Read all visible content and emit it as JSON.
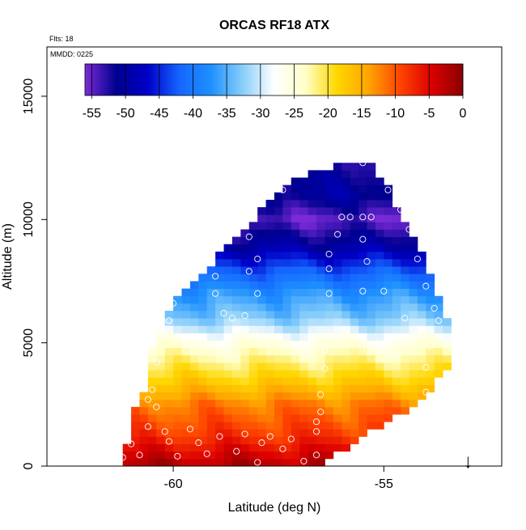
{
  "chart_data": {
    "type": "heatmap",
    "title": "ORCAS RF18 ATX",
    "notes": {
      "flights": "Flts: 18",
      "date": "MMDD: 0225"
    },
    "xlabel": "Latitude (deg N)",
    "ylabel": "Altitude (m)",
    "xlim": [
      -63,
      -52.2
    ],
    "ylim": [
      0,
      17000
    ],
    "x_ticks": [
      {
        "value": -60,
        "label": "-60"
      },
      {
        "value": -55,
        "label": "-55"
      }
    ],
    "y_ticks": [
      {
        "value": 0,
        "label": "0"
      },
      {
        "value": 5000,
        "label": "5000"
      },
      {
        "value": 10000,
        "label": "10000"
      },
      {
        "value": 15000,
        "label": "15000"
      }
    ],
    "colorbar": {
      "range": [
        -56,
        0
      ],
      "ticks": [
        {
          "value": -55,
          "label": "-55"
        },
        {
          "value": -50,
          "label": "-50"
        },
        {
          "value": -45,
          "label": "-45"
        },
        {
          "value": -40,
          "label": "-40"
        },
        {
          "value": -35,
          "label": "-35"
        },
        {
          "value": -30,
          "label": "-30"
        },
        {
          "value": -25,
          "label": "-25"
        },
        {
          "value": -20,
          "label": "-20"
        },
        {
          "value": -15,
          "label": "-15"
        },
        {
          "value": -10,
          "label": "-10"
        },
        {
          "value": -5,
          "label": "-5"
        },
        {
          "value": 0,
          "label": "0"
        }
      ],
      "colors": [
        "#7b2bd6",
        "#00008f",
        "#0000c8",
        "#1565ff",
        "#1e90ff",
        "#87cefa",
        "#ffffff",
        "#ffffc8",
        "#ffd700",
        "#ffa500",
        "#ff4500",
        "#dc0000",
        "#8b0000"
      ]
    },
    "field": {
      "description": "Gridded air temperature (deg C) vs latitude and altitude",
      "cell_lat": 0.2,
      "cell_alt": 300,
      "envelope": [
        {
          "alt": 0,
          "min_lat": -61.3,
          "max_lat": -56.5
        },
        {
          "alt": 600,
          "min_lat": -61.3,
          "max_lat": -56.0
        },
        {
          "alt": 1200,
          "min_lat": -61.0,
          "max_lat": -55.5
        },
        {
          "alt": 2100,
          "min_lat": -61.0,
          "max_lat": -54.6
        },
        {
          "alt": 3000,
          "min_lat": -60.7,
          "max_lat": -53.9
        },
        {
          "alt": 3900,
          "min_lat": -60.5,
          "max_lat": -53.5
        },
        {
          "alt": 4800,
          "min_lat": -60.5,
          "max_lat": -53.3
        },
        {
          "alt": 5700,
          "min_lat": -60.3,
          "max_lat": -53.4
        },
        {
          "alt": 6600,
          "min_lat": -60.0,
          "max_lat": -53.6
        },
        {
          "alt": 7500,
          "min_lat": -59.5,
          "max_lat": -53.8
        },
        {
          "alt": 8400,
          "min_lat": -59.0,
          "max_lat": -54.0
        },
        {
          "alt": 9300,
          "min_lat": -58.5,
          "max_lat": -54.3
        },
        {
          "alt": 10200,
          "min_lat": -58.0,
          "max_lat": -54.6
        },
        {
          "alt": 11400,
          "min_lat": -57.4,
          "max_lat": -54.9
        },
        {
          "alt": 12300,
          "min_lat": -56.0,
          "max_lat": -55.3
        }
      ],
      "temperature_profile": [
        {
          "alt": 0,
          "temp": -2
        },
        {
          "alt": 1200,
          "temp": -8
        },
        {
          "alt": 2500,
          "temp": -12
        },
        {
          "alt": 3500,
          "temp": -18
        },
        {
          "alt": 4500,
          "temp": -23
        },
        {
          "alt": 5200,
          "temp": -27
        },
        {
          "alt": 6000,
          "temp": -33
        },
        {
          "alt": 7000,
          "temp": -37
        },
        {
          "alt": 8000,
          "temp": -43
        },
        {
          "alt": 9000,
          "temp": -50
        },
        {
          "alt": 10000,
          "temp": -55
        },
        {
          "alt": 11000,
          "temp": -50
        },
        {
          "alt": 12300,
          "temp": -52
        }
      ]
    },
    "observations": [
      {
        "lat": -61.2,
        "alt": 350
      },
      {
        "lat": -61.0,
        "alt": 900
      },
      {
        "lat": -60.8,
        "alt": 450
      },
      {
        "lat": -60.6,
        "alt": 1600
      },
      {
        "lat": -60.4,
        "alt": 2400
      },
      {
        "lat": -60.2,
        "alt": 1400
      },
      {
        "lat": -60.1,
        "alt": 1000
      },
      {
        "lat": -59.9,
        "alt": 400
      },
      {
        "lat": -59.6,
        "alt": 1500
      },
      {
        "lat": -59.4,
        "alt": 950
      },
      {
        "lat": -59.2,
        "alt": 500
      },
      {
        "lat": -58.9,
        "alt": 1200
      },
      {
        "lat": -58.5,
        "alt": 600
      },
      {
        "lat": -58.3,
        "alt": 1300
      },
      {
        "lat": -58.0,
        "alt": 150
      },
      {
        "lat": -57.9,
        "alt": 950
      },
      {
        "lat": -57.7,
        "alt": 1200
      },
      {
        "lat": -57.4,
        "alt": 700
      },
      {
        "lat": -57.2,
        "alt": 1100
      },
      {
        "lat": -56.9,
        "alt": 200
      },
      {
        "lat": -56.6,
        "alt": 450
      },
      {
        "lat": -56.6,
        "alt": 1400
      },
      {
        "lat": -56.6,
        "alt": 1800
      },
      {
        "lat": -56.5,
        "alt": 2200
      },
      {
        "lat": -56.5,
        "alt": 2900
      },
      {
        "lat": -56.4,
        "alt": 3950
      },
      {
        "lat": -56.4,
        "alt": 4700
      },
      {
        "lat": -56.3,
        "alt": 5400
      },
      {
        "lat": -56.0,
        "alt": 5200
      },
      {
        "lat": -55.4,
        "alt": 4700
      },
      {
        "lat": -54.7,
        "alt": 4500
      },
      {
        "lat": -54.0,
        "alt": 4000
      },
      {
        "lat": -54.0,
        "alt": 3000
      },
      {
        "lat": -53.9,
        "alt": 4900
      },
      {
        "lat": -53.7,
        "alt": 5900
      },
      {
        "lat": -54.5,
        "alt": 6000
      },
      {
        "lat": -55.0,
        "alt": 7100
      },
      {
        "lat": -55.5,
        "alt": 7100
      },
      {
        "lat": -56.3,
        "alt": 7000
      },
      {
        "lat": -56.3,
        "alt": 8000
      },
      {
        "lat": -56.3,
        "alt": 8600
      },
      {
        "lat": -55.4,
        "alt": 8300
      },
      {
        "lat": -54.2,
        "alt": 8400
      },
      {
        "lat": -54.0,
        "alt": 7300
      },
      {
        "lat": -53.8,
        "alt": 6400
      },
      {
        "lat": -56.1,
        "alt": 9400
      },
      {
        "lat": -55.5,
        "alt": 9200
      },
      {
        "lat": -56.0,
        "alt": 10100
      },
      {
        "lat": -55.8,
        "alt": 10100
      },
      {
        "lat": -55.5,
        "alt": 10100
      },
      {
        "lat": -55.3,
        "alt": 10100
      },
      {
        "lat": -54.6,
        "alt": 10400
      },
      {
        "lat": -54.4,
        "alt": 9600
      },
      {
        "lat": -54.9,
        "alt": 11200
      },
      {
        "lat": -55.1,
        "alt": 11900
      },
      {
        "lat": -55.5,
        "alt": 12300
      },
      {
        "lat": -56.4,
        "alt": 12300
      },
      {
        "lat": -56.9,
        "alt": 12300
      },
      {
        "lat": -57.4,
        "alt": 12100
      },
      {
        "lat": -57.4,
        "alt": 11200
      },
      {
        "lat": -58.2,
        "alt": 9300
      },
      {
        "lat": -58.0,
        "alt": 8400
      },
      {
        "lat": -58.2,
        "alt": 7900
      },
      {
        "lat": -59.0,
        "alt": 7700
      },
      {
        "lat": -59.5,
        "alt": 7700
      },
      {
        "lat": -59.9,
        "alt": 7100
      },
      {
        "lat": -60.0,
        "alt": 6600
      },
      {
        "lat": -59.0,
        "alt": 7000
      },
      {
        "lat": -58.0,
        "alt": 7000
      },
      {
        "lat": -58.8,
        "alt": 6200
      },
      {
        "lat": -58.6,
        "alt": 6000
      },
      {
        "lat": -58.3,
        "alt": 6100
      },
      {
        "lat": -60.1,
        "alt": 5900
      },
      {
        "lat": -60.4,
        "alt": 4200
      },
      {
        "lat": -60.5,
        "alt": 3100
      },
      {
        "lat": -60.6,
        "alt": 2700
      }
    ],
    "marker": {
      "lat": -53.0,
      "symbol": "↓"
    }
  }
}
